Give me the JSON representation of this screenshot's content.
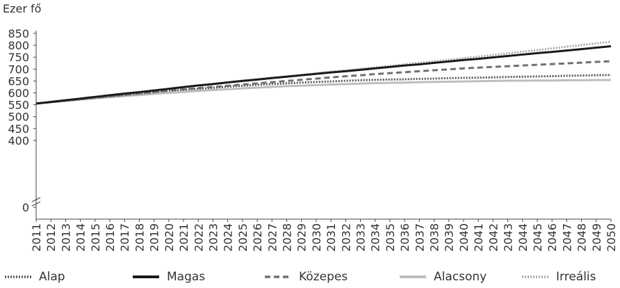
{
  "chart_data": {
    "type": "line",
    "ylabel": "Ezer fő",
    "y_ticks": [
      "850",
      "800",
      "750",
      "700",
      "650",
      "600",
      "550",
      "500",
      "450",
      "400",
      "0"
    ],
    "y_axis_break": true,
    "ylim": [
      400,
      850
    ],
    "x": [
      "2011",
      "2012",
      "2013",
      "2014",
      "2015",
      "2016",
      "2017",
      "2018",
      "2019",
      "2020",
      "2021",
      "2022",
      "2023",
      "2024",
      "2025",
      "2026",
      "2027",
      "2028",
      "2029",
      "2030",
      "2031",
      "2032",
      "2033",
      "2034",
      "2035",
      "2036",
      "2037",
      "2038",
      "2039",
      "2040",
      "2041",
      "2042",
      "2043",
      "2044",
      "2045",
      "2046",
      "2047",
      "2048",
      "2049",
      "2050"
    ],
    "series": [
      {
        "name": "Alap",
        "color": "#555555",
        "style": "dotted",
        "values": [
          555,
          561,
          567,
          573,
          579,
          585,
          591,
          597,
          603,
          609,
          613,
          617,
          621,
          626,
          630,
          634,
          637,
          640,
          643,
          646,
          648,
          651,
          653,
          655,
          656,
          657,
          659,
          660,
          662,
          663,
          664,
          665,
          667,
          668,
          669,
          670,
          672,
          673,
          674,
          675
        ]
      },
      {
        "name": "Magas",
        "color": "#1a1a1a",
        "style": "solid",
        "values": [
          555,
          562,
          569,
          576,
          583,
          590,
          597,
          603,
          610,
          617,
          624,
          631,
          637,
          644,
          650,
          656,
          662,
          668,
          674,
          680,
          686,
          691,
          697,
          703,
          709,
          715,
          720,
          726,
          732,
          738,
          743,
          749,
          755,
          761,
          767,
          772,
          778,
          784,
          790,
          796
        ]
      },
      {
        "name": "Közepes",
        "color": "#707070",
        "style": "dashed",
        "values": [
          555,
          561,
          568,
          574,
          580,
          586,
          592,
          598,
          604,
          609,
          615,
          620,
          625,
          630,
          635,
          640,
          645,
          650,
          655,
          660,
          665,
          670,
          674,
          679,
          683,
          687,
          691,
          695,
          699,
          703,
          706,
          709,
          712,
          715,
          718,
          721,
          724,
          727,
          730,
          733
        ]
      },
      {
        "name": "Alacsony",
        "color": "#bdbdbd",
        "style": "solid",
        "values": [
          555,
          561,
          566,
          572,
          577,
          582,
          587,
          591,
          596,
          600,
          604,
          608,
          612,
          615,
          619,
          622,
          625,
          628,
          630,
          633,
          635,
          637,
          639,
          641,
          642,
          643,
          645,
          646,
          647,
          648,
          649,
          650,
          651,
          651,
          652,
          652,
          653,
          653,
          654,
          654
        ]
      },
      {
        "name": "Irreális",
        "color": "#a8a8a8",
        "style": "dotted",
        "values": [
          555,
          562,
          569,
          576,
          583,
          590,
          597,
          604,
          611,
          618,
          625,
          632,
          638,
          645,
          652,
          658,
          664,
          670,
          676,
          682,
          689,
          695,
          701,
          707,
          713,
          720,
          726,
          733,
          739,
          746,
          752,
          759,
          766,
          773,
          780,
          787,
          794,
          801,
          808,
          815
        ]
      }
    ]
  }
}
